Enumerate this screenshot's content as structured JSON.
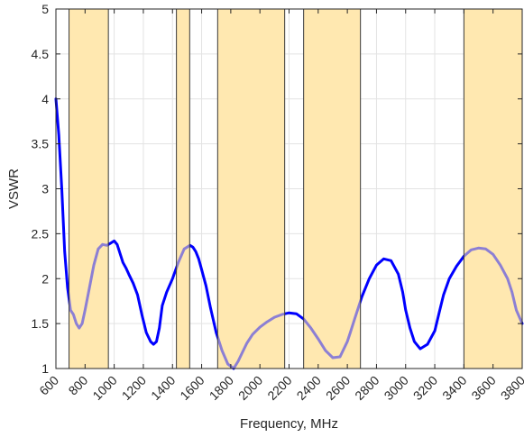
{
  "chart_data": {
    "type": "line",
    "xlabel": "Frequency, MHz",
    "ylabel": "VSWR",
    "xlim": [
      600,
      3800
    ],
    "ylim": [
      1,
      5
    ],
    "grid": true,
    "x_ticks": [
      "600",
      "800",
      "1000",
      "1200",
      "1400",
      "1600",
      "1800",
      "2000",
      "2200",
      "2400",
      "2600",
      "2800",
      "3000",
      "3200",
      "3400",
      "3600",
      "3800"
    ],
    "y_ticks": [
      "1",
      "1.5",
      "2",
      "2.5",
      "3",
      "3.5",
      "4",
      "4.5",
      "5"
    ],
    "bands": [
      {
        "start": 690,
        "end": 960
      },
      {
        "start": 1427,
        "end": 1518
      },
      {
        "start": 1710,
        "end": 2170
      },
      {
        "start": 2300,
        "end": 2690
      },
      {
        "start": 3400,
        "end": 3800
      }
    ],
    "band_color": "#ffe8b0",
    "line_color": "#0000ff",
    "series": [
      {
        "x": [
          600,
          620,
          640,
          660,
          680,
          700,
          720,
          740,
          760,
          780,
          800,
          830,
          860,
          890,
          920,
          950,
          980,
          1000,
          1020,
          1040,
          1060,
          1080,
          1100,
          1130,
          1160,
          1190,
          1220,
          1250,
          1270,
          1290,
          1310,
          1330,
          1360,
          1400,
          1440,
          1480,
          1520,
          1540,
          1560,
          1580,
          1600,
          1630,
          1660,
          1700,
          1740,
          1780,
          1820,
          1850,
          1880,
          1910,
          1950,
          2000,
          2050,
          2100,
          2150,
          2200,
          2250,
          2300,
          2350,
          2400,
          2450,
          2500,
          2550,
          2600,
          2620,
          2650,
          2700,
          2750,
          2800,
          2850,
          2900,
          2950,
          2980,
          3000,
          3030,
          3060,
          3100,
          3150,
          3200,
          3230,
          3260,
          3300,
          3350,
          3400,
          3450,
          3500,
          3550,
          3600,
          3650,
          3700,
          3730,
          3760,
          3800
        ],
        "y": [
          4.0,
          3.6,
          3.0,
          2.3,
          1.9,
          1.65,
          1.6,
          1.5,
          1.45,
          1.5,
          1.65,
          1.9,
          2.15,
          2.33,
          2.38,
          2.37,
          2.4,
          2.42,
          2.38,
          2.28,
          2.18,
          2.12,
          2.05,
          1.95,
          1.82,
          1.6,
          1.4,
          1.3,
          1.27,
          1.3,
          1.45,
          1.7,
          1.85,
          2.0,
          2.18,
          2.33,
          2.37,
          2.35,
          2.3,
          2.22,
          2.1,
          1.92,
          1.68,
          1.4,
          1.2,
          1.05,
          1.0,
          1.08,
          1.18,
          1.28,
          1.38,
          1.46,
          1.52,
          1.57,
          1.6,
          1.62,
          1.61,
          1.55,
          1.45,
          1.33,
          1.2,
          1.12,
          1.13,
          1.3,
          1.4,
          1.55,
          1.8,
          2.0,
          2.15,
          2.22,
          2.2,
          2.05,
          1.85,
          1.65,
          1.45,
          1.3,
          1.22,
          1.27,
          1.42,
          1.62,
          1.82,
          2.0,
          2.14,
          2.25,
          2.32,
          2.34,
          2.33,
          2.27,
          2.15,
          2.0,
          1.85,
          1.65,
          1.5
        ]
      }
    ]
  }
}
